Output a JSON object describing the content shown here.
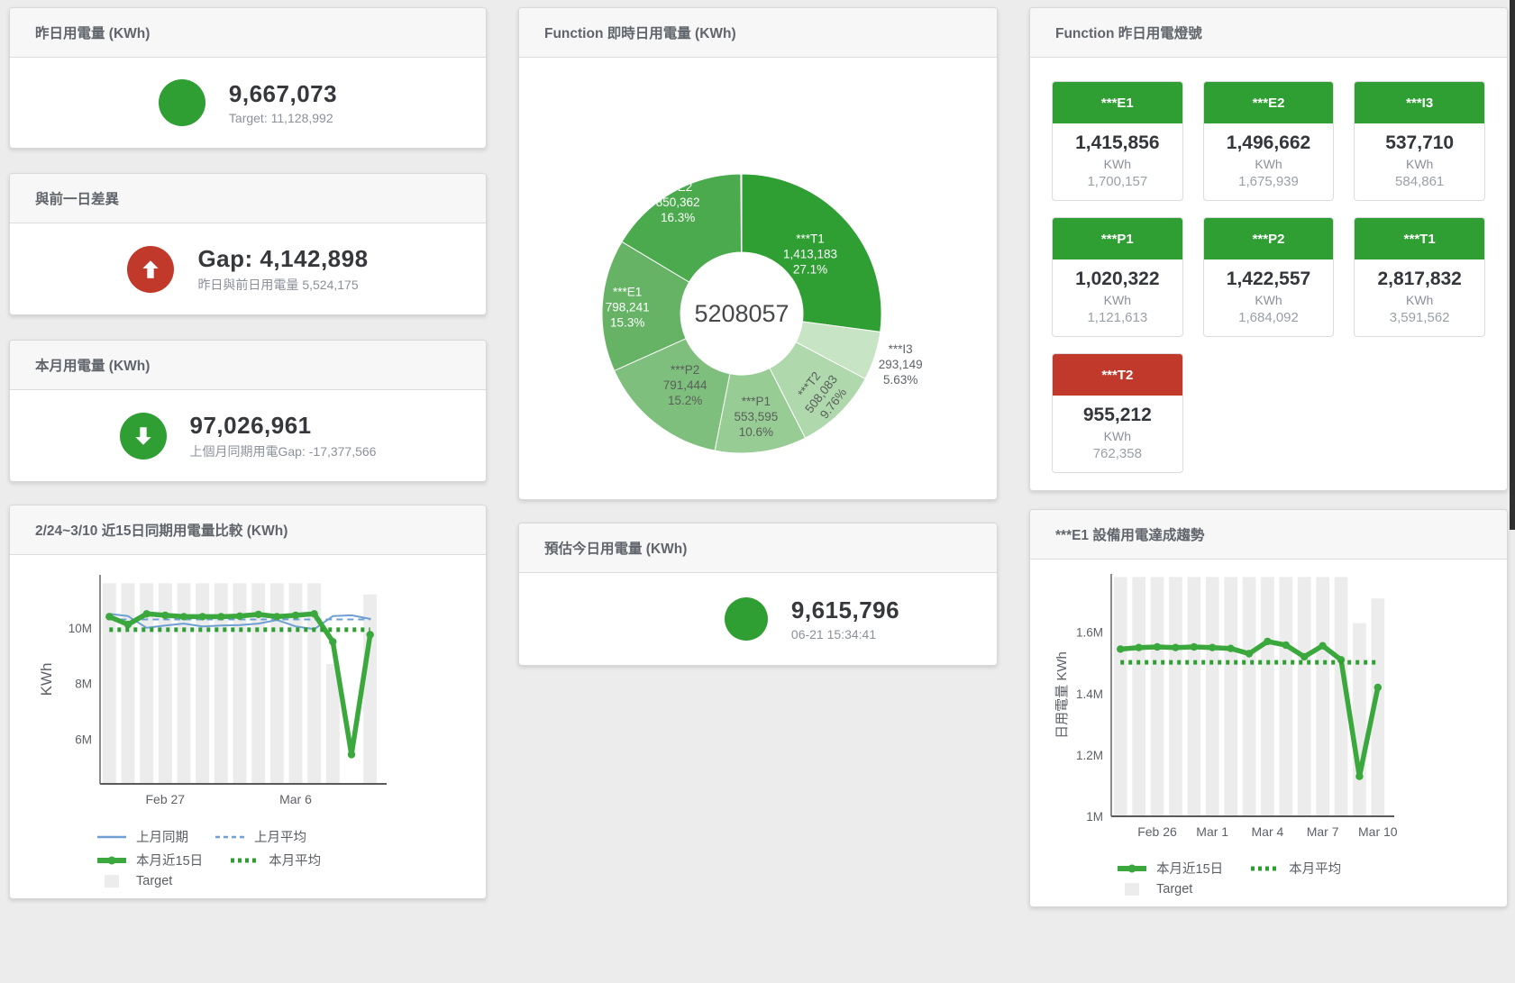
{
  "colors": {
    "green": "#2f9e33",
    "red": "#c0392b",
    "line_green": "#3aa83c",
    "line_blue": "#6f9fd3",
    "bar_grey": "#ececec"
  },
  "panels": {
    "yesterday": {
      "title": "昨日用電量 (KWh)",
      "value": "9,667,073",
      "subtitle": "Target: 11,128,992"
    },
    "gap": {
      "title": "與前一日差異",
      "value": "Gap: 4,142,898",
      "subtitle": "昨日與前日用電量 5,524,175"
    },
    "month": {
      "title": "本月用電量 (KWh)",
      "value": "97,026,961",
      "subtitle": "上個月同期用電Gap: -17,377,566"
    },
    "donut": {
      "title": "Function 即時日用電量 (KWh)"
    },
    "lights": {
      "title": "Function 昨日用電燈號",
      "tiles": [
        {
          "key": "e1",
          "label": "***E1",
          "value": "1,415,856",
          "unit": "KWh",
          "target": "1,700,157",
          "status": "green"
        },
        {
          "key": "e2",
          "label": "***E2",
          "value": "1,496,662",
          "unit": "KWh",
          "target": "1,675,939",
          "status": "green"
        },
        {
          "key": "i3",
          "label": "***I3",
          "value": "537,710",
          "unit": "KWh",
          "target": "584,861",
          "status": "green"
        },
        {
          "key": "p1",
          "label": "***P1",
          "value": "1,020,322",
          "unit": "KWh",
          "target": "1,121,613",
          "status": "green"
        },
        {
          "key": "p2",
          "label": "***P2",
          "value": "1,422,557",
          "unit": "KWh",
          "target": "1,684,092",
          "status": "green"
        },
        {
          "key": "t1",
          "label": "***T1",
          "value": "2,817,832",
          "unit": "KWh",
          "target": "3,591,562",
          "status": "green"
        },
        {
          "key": "t2",
          "label": "***T2",
          "value": "955,212",
          "unit": "KWh",
          "target": "762,358",
          "status": "red"
        }
      ]
    },
    "compare15": {
      "title": "2/24~3/10 近15日同期用電量比較 (KWh)"
    },
    "today_est": {
      "title": "預估今日用電量 (KWh)",
      "value": "9,615,796",
      "subtitle": "06-21 15:34:41"
    },
    "e1_trend": {
      "title": "***E1 設備用電達成趨勢"
    }
  },
  "chart_data": [
    {
      "type": "pie",
      "title": "Function 即時日用電量 (KWh)",
      "center_total": "5208057",
      "slices": [
        {
          "label": "***T1",
          "display": "1,413,183",
          "value": 1413183,
          "pct": "27.1%",
          "color": "#2f9e33",
          "text": "#ffffff",
          "label_r": 101
        },
        {
          "label": "***I3",
          "display": "293,149",
          "value": 293149,
          "pct": "5.63%",
          "color": "#c7e4c5",
          "text": "#5f6368",
          "label_r": 185
        },
        {
          "label": "***T2",
          "display": "508,083",
          "value": 508083,
          "pct": "9.76%",
          "color": "#afd8ad",
          "text": "#586059",
          "label_r": 125,
          "rotate": -52
        },
        {
          "label": "***P1",
          "display": "553,595",
          "value": 553595,
          "pct": "10.6%",
          "color": "#97cc95",
          "text": "#586059",
          "label_r": 115
        },
        {
          "label": "***P2",
          "display": "791,444",
          "value": 791444,
          "pct": "15.2%",
          "color": "#7fbf7d",
          "text": "#586059",
          "label_r": 101
        },
        {
          "label": "***E1",
          "display": "798,241",
          "value": 798241,
          "pct": "15.3%",
          "color": "#66b366",
          "text": "#ffffff",
          "label_r": 127
        },
        {
          "label": "***E2",
          "display": "850,362",
          "value": 850362,
          "pct": "16.3%",
          "color": "#4caa4e",
          "text": "#ffffff",
          "label_r": 143
        }
      ]
    },
    {
      "type": "bar+line",
      "title": "2/24~3/10 近15日同期用電量比較 (KWh)",
      "unit": "M KWh",
      "ylabel": "KWh",
      "ylabel_size": 17,
      "n": 15,
      "ylim": [
        4.4,
        11.9
      ],
      "yticks": [
        {
          "v": 6,
          "label": "6M"
        },
        {
          "v": 8,
          "label": "8M"
        },
        {
          "v": 10,
          "label": "10M"
        }
      ],
      "xticks": [
        {
          "i": 3,
          "label": "Feb 27"
        },
        {
          "i": 10,
          "label": "Mar 6"
        }
      ],
      "margin": {
        "l": 100,
        "r": 116,
        "t": 22,
        "b": 46,
        "ylx": 46
      },
      "bars": {
        "name": "Target",
        "color": "#ececec",
        "values": [
          11.6,
          11.6,
          11.6,
          11.6,
          11.6,
          11.6,
          11.6,
          11.6,
          11.6,
          11.6,
          11.6,
          11.6,
          8.7,
          null,
          11.2
        ]
      },
      "series": [
        {
          "name": "上月同期",
          "color": "#6f9fd3",
          "style": "solid",
          "width": 2,
          "values": [
            10.5,
            10.42,
            10.0,
            10.08,
            10.15,
            10.05,
            10.08,
            10.1,
            10.15,
            10.28,
            10.05,
            9.95,
            10.42,
            10.45,
            10.32
          ]
        },
        {
          "name": "上月平均",
          "color": "#6f9fd3",
          "style": "dash",
          "width": 2,
          "value": 10.3
        },
        {
          "name": "本月近15日",
          "color": "#3aa83c",
          "style": "solid",
          "width": 5.5,
          "marker": 4.2,
          "values": [
            10.4,
            10.12,
            10.5,
            10.45,
            10.4,
            10.4,
            10.4,
            10.42,
            10.48,
            10.4,
            10.45,
            10.5,
            9.5,
            5.45,
            9.75
          ]
        },
        {
          "name": "本月平均",
          "color": "#2f9e33",
          "style": "dots",
          "width": 5,
          "value": 9.93
        }
      ],
      "legend_rows": [
        [
          {
            "name": "上月同期",
            "swatch": "line",
            "color": "#6f9fd3"
          },
          {
            "name": "上月平均",
            "swatch": "dash",
            "color": "#6f9fd3"
          }
        ],
        [
          {
            "name": "本月近15日",
            "swatch": "thickline",
            "color": "#3aa83c"
          },
          {
            "name": "本月平均",
            "swatch": "dots",
            "color": "#2f9e33"
          }
        ],
        [
          {
            "name": "Target",
            "swatch": "box",
            "color": "#ececec"
          }
        ]
      ]
    },
    {
      "type": "bar+line",
      "title": "***E1 設備用電達成趨勢",
      "unit": "M KWh",
      "ylabel": "日用電量 KWh",
      "ylabel_size": 15,
      "n": 15,
      "ylim": [
        1.0,
        1.79
      ],
      "yticks": [
        {
          "v": 1,
          "label": "1M"
        },
        {
          "v": 1.2,
          "label": "1.2M"
        },
        {
          "v": 1.4,
          "label": "1.4M"
        },
        {
          "v": 1.6,
          "label": "1.6M"
        }
      ],
      "xticks": [
        {
          "i": 2,
          "label": "Feb 26"
        },
        {
          "i": 5,
          "label": "Mar 1"
        },
        {
          "i": 8,
          "label": "Mar 4"
        },
        {
          "i": 11,
          "label": "Mar 7"
        },
        {
          "i": 14,
          "label": "Mar 10"
        }
      ],
      "margin": {
        "l": 90,
        "r": 131,
        "t": 16,
        "b": 45,
        "ylx": 40
      },
      "bars": {
        "name": "Target",
        "color": "#ececec",
        "values": [
          1.78,
          1.78,
          1.78,
          1.78,
          1.78,
          1.78,
          1.78,
          1.78,
          1.78,
          1.78,
          1.78,
          1.78,
          1.78,
          1.63,
          1.71
        ]
      },
      "series": [
        {
          "name": "本月近15日",
          "color": "#3aa83c",
          "style": "solid",
          "width": 5.5,
          "marker": 4.2,
          "values": [
            1.545,
            1.55,
            1.552,
            1.55,
            1.552,
            1.55,
            1.547,
            1.53,
            1.57,
            1.558,
            1.52,
            1.556,
            1.51,
            1.13,
            1.42
          ]
        },
        {
          "name": "本月平均",
          "color": "#2f9e33",
          "style": "dots",
          "width": 5,
          "value": 1.502
        }
      ],
      "legend_rows": [
        [
          {
            "name": "本月近15日",
            "swatch": "thickline",
            "color": "#3aa83c"
          },
          {
            "name": "本月平均",
            "swatch": "dots",
            "color": "#2f9e33"
          }
        ],
        [
          {
            "name": "Target",
            "swatch": "box",
            "color": "#ececec"
          }
        ]
      ]
    }
  ]
}
